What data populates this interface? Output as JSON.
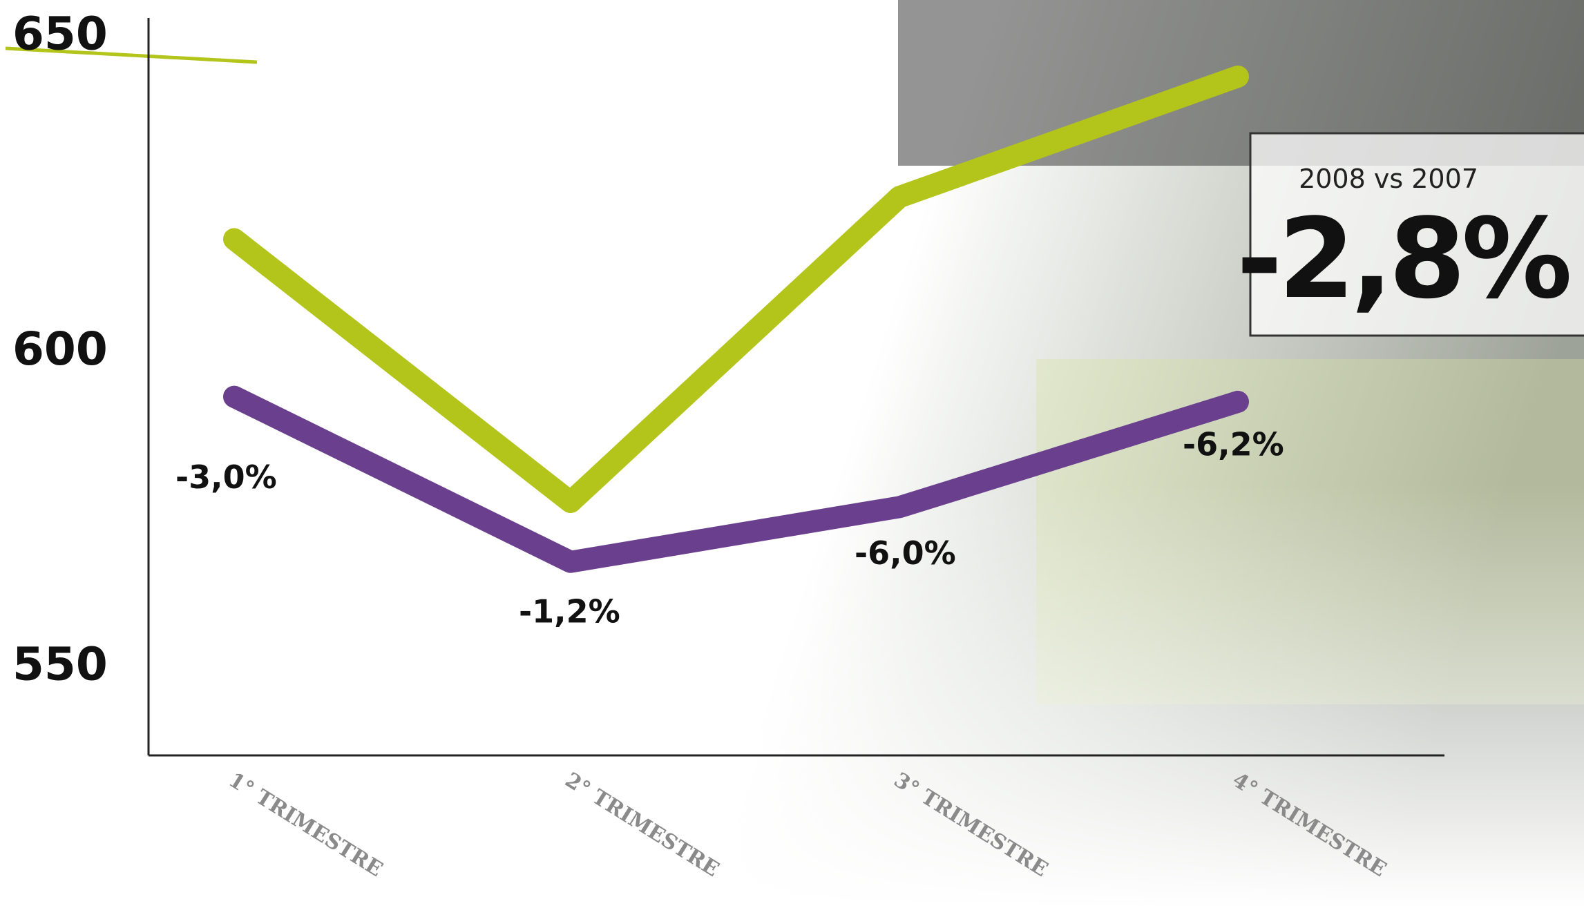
{
  "chart_data": {
    "type": "line",
    "categories": [
      "1° TRIMESTRE",
      "2° TRIMESTRE",
      "3° TRIMESTRE",
      "4° TRIMESTRE"
    ],
    "series": [
      {
        "color": "#b3c41a",
        "values": [
          617.9,
          576.2,
          624.6,
          643.7
        ]
      },
      {
        "color": "#6a3f8e",
        "values": [
          592.9,
          566.7,
          575.4,
          592.1
        ]
      }
    ],
    "annotations": [
      "-3,0%",
      "-1,2%",
      "-6,0%",
      "-6,2%"
    ],
    "callout": {
      "subtitle": "2008 vs 2007",
      "value": "-2,8%"
    },
    "ylim": [
      536,
      653
    ],
    "yticks": [
      550,
      600,
      650
    ],
    "grid": false
  }
}
